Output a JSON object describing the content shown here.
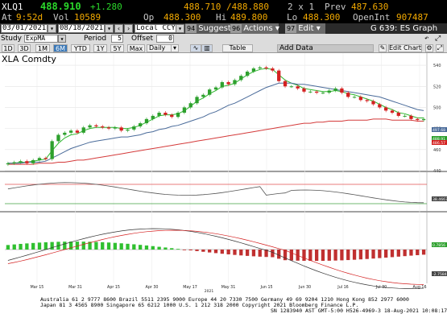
{
  "quote": {
    "ticker": "XLQ1",
    "last": "488.910",
    "change": "+1.280",
    "bid_ask": "488.710 /488.880",
    "size": "2 x 1",
    "prev_label": "Prev",
    "prev": "487.630",
    "at_label": "At",
    "time": "9:52d",
    "vol_label": "Vol",
    "vol": "10589",
    "op_label": "Op",
    "op": "488.300",
    "hi_label": "Hi",
    "hi": "489.800",
    "lo_label": "Lo",
    "lo": "488.300",
    "oi_label": "OpenInt",
    "oi": "907487"
  },
  "toolbar": {
    "start_date": "03/01/2021",
    "end_date": "08/18/2021",
    "currency": "Local CCY",
    "suggested_num": "94",
    "suggested": "Suggested Charts",
    "actions_num": "96",
    "actions": "Actions",
    "edit_num": "97",
    "edit": "Edit",
    "graph_title": "G 639: ES Graph"
  },
  "settings": {
    "security": "XLA Comdty",
    "study_label": "Study",
    "study": "ExpMA",
    "period_label": "Period",
    "period": "5",
    "offset_label": "Offset",
    "offset": "0"
  },
  "periods": [
    "1D",
    "3D",
    "1M",
    "6M",
    "YTD",
    "1Y",
    "5Y",
    "Max"
  ],
  "selected_period": "6M",
  "frequency": "Daily",
  "table_label": "Table",
  "add_data": "Add Data",
  "edit_chart": "Edit Chart",
  "chart_data": {
    "type": "candlestick",
    "x_labels": [
      "Mar 15",
      "Mar 31",
      "Apr 15",
      "Apr 30",
      "May 17",
      "May 31",
      "Jun 15",
      "Jun 30",
      "Jul 16",
      "Jul 30",
      "Aug 16"
    ],
    "year_label": "2021",
    "y_ticks": [
      440,
      460,
      480,
      500,
      520,
      540
    ],
    "ylim": [
      440,
      550
    ],
    "price_tags": [
      "497.68",
      "488.91",
      "486.57"
    ],
    "series": [
      {
        "name": "Price",
        "values": [
          447,
          448,
          449,
          447,
          450,
          452,
          451,
          468,
          474,
          476,
          478,
          476,
          481,
          483,
          482,
          481,
          480,
          481,
          478,
          479,
          482,
          485,
          489,
          492,
          495,
          493,
          491,
          495,
          500,
          504,
          510,
          512,
          517,
          519,
          524,
          522,
          526,
          530,
          534,
          537,
          538,
          537,
          535,
          525,
          520,
          520,
          518,
          515,
          515,
          514,
          514,
          516,
          518,
          514,
          510,
          510,
          507,
          506,
          503,
          500,
          497,
          495,
          492,
          492,
          489,
          488,
          489
        ]
      },
      {
        "name": "EMA fast",
        "values": [
          447,
          447,
          448,
          448,
          449,
          450,
          451,
          459,
          466,
          471,
          474,
          475,
          478,
          480,
          481,
          481,
          481,
          481,
          480,
          480,
          481,
          483,
          486,
          489,
          492,
          493,
          493,
          494,
          497,
          501,
          506,
          509,
          513,
          516,
          520,
          521,
          523,
          527,
          531,
          534,
          536,
          537,
          536,
          531,
          526,
          523,
          521,
          518,
          517,
          516,
          515,
          515,
          516,
          515,
          513,
          512,
          510,
          508,
          506,
          503,
          500,
          498,
          495,
          494,
          492,
          490,
          490
        ]
      },
      {
        "name": "EMA slow",
        "values": [
          447,
          447,
          447,
          448,
          448,
          448,
          449,
          452,
          455,
          458,
          461,
          463,
          465,
          467,
          468,
          469,
          470,
          471,
          472,
          472,
          473,
          474,
          476,
          477,
          479,
          480,
          482,
          483,
          485,
          487,
          489,
          491,
          494,
          496,
          499,
          502,
          504,
          507,
          510,
          513,
          516,
          519,
          521,
          523,
          523,
          523,
          522,
          522,
          521,
          520,
          519,
          518,
          517,
          516,
          515,
          514,
          513,
          512,
          511,
          510,
          508,
          506,
          504,
          502,
          500,
          498,
          497
        ]
      },
      {
        "name": "Long MA",
        "values": [
          446,
          446,
          446,
          446,
          446,
          447,
          447,
          447,
          448,
          448,
          449,
          450,
          450,
          451,
          452,
          453,
          454,
          455,
          456,
          457,
          458,
          459,
          460,
          461,
          462,
          463,
          464,
          465,
          466,
          467,
          468,
          469,
          470,
          471,
          472,
          473,
          474,
          475,
          476,
          477,
          478,
          479,
          480,
          481,
          482,
          483,
          484,
          485,
          485,
          486,
          486,
          487,
          487,
          487,
          488,
          488,
          488,
          488,
          489,
          489,
          489,
          488,
          488,
          488,
          488,
          487,
          487
        ]
      }
    ],
    "rsi_tag": "38.4667",
    "macd_tags": [
      "0.7856",
      "-2.7584"
    ]
  },
  "footer": {
    "line1": "Australia 61 2 9777 8600  Brazil 5511 2395 9000  Europe 44 20 7330 7500  Germany 49 69 9204 1210  Hong Kong 852 2977 6000",
    "line2": "Japan 81 3 4565 8900        Singapore 65 6212 1000      U.S. 1 212 318 2000         Copyright 2021 Bloomberg Finance L.P.",
    "line3": "SN 1283940 AST  GMT-5:00 H526-4969-3 18-Aug-2021 10:08:17"
  },
  "colors": {
    "up": "#2da02d",
    "down": "#d42020",
    "ema_fast": "#2db82d",
    "ema_slow": "#4a6b9a",
    "long_ma": "#d43a3a"
  }
}
